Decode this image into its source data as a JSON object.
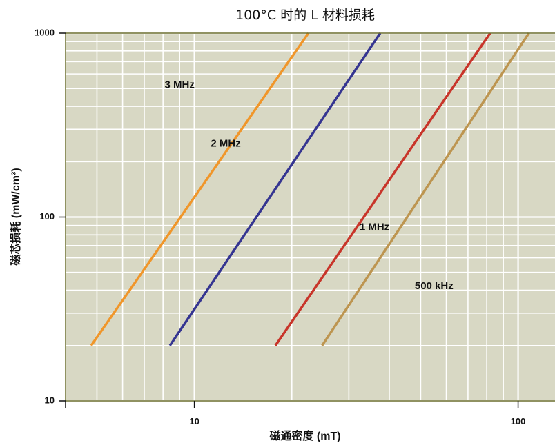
{
  "chart_data": {
    "type": "line",
    "title": "100°C 时的 L 材料损耗",
    "xlabel": "磁通密度 (mT)",
    "ylabel": "磁芯损耗 (mW/cm³)",
    "x_scale": "log",
    "y_scale": "log",
    "xlim": [
      4,
      130
    ],
    "ylim": [
      10,
      1000
    ],
    "x_ticks": [
      10,
      100
    ],
    "x_tick_labels": [
      "10",
      "100"
    ],
    "y_ticks": [
      10,
      100,
      1000
    ],
    "y_tick_labels": [
      "10",
      "100",
      "1000"
    ],
    "grid": true,
    "legend": "none",
    "series": [
      {
        "name": "3 MHz",
        "color": "#f0962a",
        "x": [
          4.8,
          22.5
        ],
        "y": [
          20,
          1000
        ]
      },
      {
        "name": "2 MHz",
        "color": "#353591",
        "x": [
          8.4,
          37.5
        ],
        "y": [
          20,
          1000
        ]
      },
      {
        "name": "1 MHz",
        "color": "#c8352a",
        "x": [
          17.8,
          82
        ],
        "y": [
          20,
          1000
        ]
      },
      {
        "name": "500 kHz",
        "color": "#bd9550",
        "x": [
          24.8,
          108
        ],
        "y": [
          20,
          1000
        ]
      }
    ],
    "series_label_positions": [
      {
        "x": 9.0,
        "y": 520
      },
      {
        "x": 12.5,
        "y": 250
      },
      {
        "x": 36,
        "y": 88
      },
      {
        "x": 55,
        "y": 42
      }
    ]
  }
}
